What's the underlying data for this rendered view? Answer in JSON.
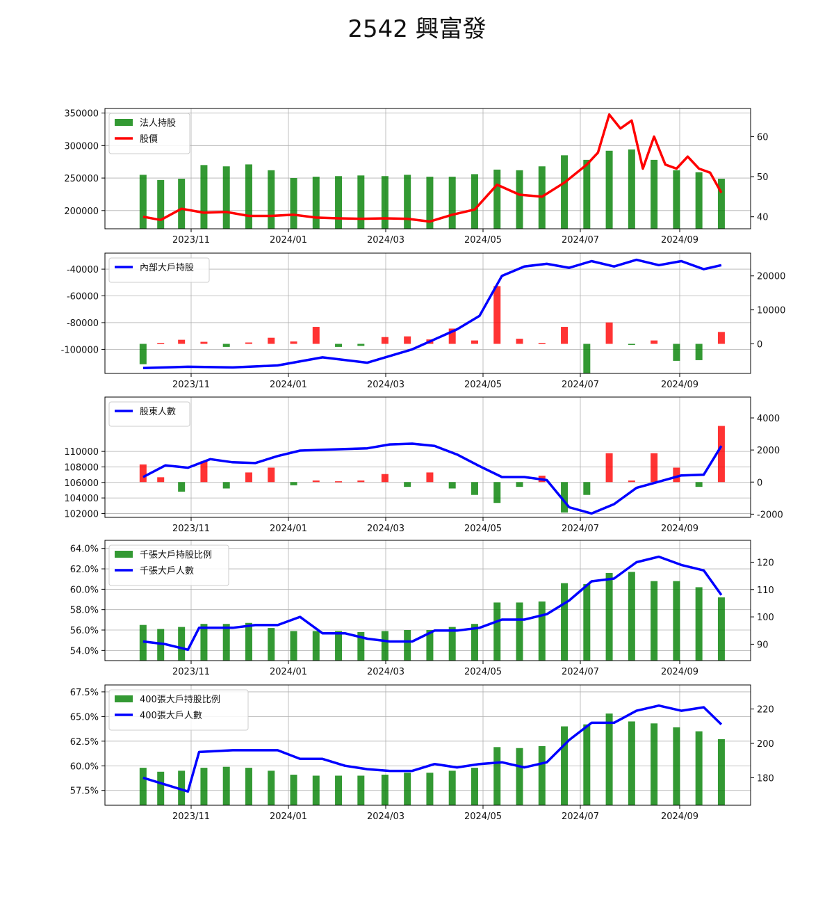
{
  "title": "2542 興富發",
  "colors": {
    "bar_green": "#008000",
    "price_red": "#ff0000",
    "line_blue": "#0000ff",
    "bar_red": "#ff0000"
  },
  "x_ticks": [
    "2023/11",
    "2024/01",
    "2024/03",
    "2024/05",
    "2024/07",
    "2024/09"
  ],
  "chart_data": [
    {
      "type": "bar+line",
      "legend": [
        "法人持股",
        "股價"
      ],
      "legend_position": "upper-left",
      "grid": true,
      "left_ticks": [
        "200000",
        "250000",
        "300000",
        "350000"
      ],
      "right_ticks": [
        "40",
        "50",
        "60"
      ],
      "left_ylim": [
        172000,
        357000
      ],
      "right_ylim": [
        37,
        67
      ],
      "series": [
        {
          "name": "法人持股",
          "axis": "left",
          "kind": "bar",
          "x": [
            "2023-10-02",
            "2023-10-13",
            "2023-10-26",
            "2023-11-09",
            "2023-11-23",
            "2023-12-07",
            "2023-12-21",
            "2024-01-04",
            "2024-01-18",
            "2024-02-01",
            "2024-02-15",
            "2024-03-01",
            "2024-03-15",
            "2024-03-29",
            "2024-04-12",
            "2024-04-26",
            "2024-05-10",
            "2024-05-24",
            "2024-06-07",
            "2024-06-21",
            "2024-07-05",
            "2024-07-19",
            "2024-08-02",
            "2024-08-16",
            "2024-08-30",
            "2024-09-13",
            "2024-09-27"
          ],
          "values": [
            255000,
            247000,
            249000,
            270000,
            268000,
            271000,
            262000,
            250000,
            252000,
            253000,
            254000,
            253000,
            255000,
            252000,
            252000,
            256000,
            263000,
            262000,
            268000,
            285000,
            278000,
            292000,
            294000,
            278000,
            262000,
            259000,
            249000
          ]
        },
        {
          "name": "股價",
          "axis": "right",
          "kind": "line",
          "x": [
            "2023-10-02",
            "2023-10-13",
            "2023-10-26",
            "2023-11-09",
            "2023-11-23",
            "2023-12-07",
            "2023-12-21",
            "2024-01-04",
            "2024-01-18",
            "2024-02-01",
            "2024-02-15",
            "2024-03-01",
            "2024-03-15",
            "2024-03-29",
            "2024-04-12",
            "2024-04-26",
            "2024-05-10",
            "2024-05-24",
            "2024-06-07",
            "2024-06-21",
            "2024-07-05",
            "2024-07-12",
            "2024-07-19",
            "2024-07-26",
            "2024-08-02",
            "2024-08-09",
            "2024-08-16",
            "2024-08-23",
            "2024-08-30",
            "2024-09-06",
            "2024-09-13",
            "2024-09-20",
            "2024-09-27"
          ],
          "values": [
            40,
            39.2,
            42,
            41,
            41.2,
            40.2,
            40.2,
            40.5,
            39.8,
            39.6,
            39.5,
            39.6,
            39.5,
            38.8,
            40.5,
            41.8,
            48,
            45.5,
            45,
            48.5,
            53,
            56,
            65.5,
            62,
            64,
            52,
            60,
            53,
            52,
            55,
            52,
            51,
            46
          ]
        }
      ]
    },
    {
      "type": "bar+line",
      "legend": [
        "內部大戶持股"
      ],
      "legend_position": "upper-left",
      "grid": true,
      "left_ticks": [
        "-100000",
        "-80000",
        "-60000",
        "-40000"
      ],
      "right_ticks": [
        "0",
        "10000",
        "20000"
      ],
      "left_ylim": [
        -118000,
        -28000
      ],
      "right_ylim": [
        -8700,
        26700
      ],
      "series": [
        {
          "name": "內部大戶持股",
          "axis": "left",
          "kind": "line",
          "x": [
            "2023-10-02",
            "2023-10-30",
            "2023-11-27",
            "2023-12-25",
            "2024-01-22",
            "2024-02-19",
            "2024-03-18",
            "2024-04-15",
            "2024-04-29",
            "2024-05-13",
            "2024-05-27",
            "2024-06-10",
            "2024-06-24",
            "2024-07-08",
            "2024-07-22",
            "2024-08-05",
            "2024-08-19",
            "2024-09-02",
            "2024-09-16",
            "2024-09-27"
          ],
          "values": [
            -114000,
            -113000,
            -113500,
            -112000,
            -106000,
            -110000,
            -100000,
            -85000,
            -75000,
            -45000,
            -38000,
            -36000,
            -39000,
            -34000,
            -38000,
            -33000,
            -37000,
            -34000,
            -40000,
            -37000
          ]
        },
        {
          "name": "變化",
          "axis": "right",
          "kind": "bar",
          "x": [
            "2023-10-02",
            "2023-10-13",
            "2023-10-26",
            "2023-11-09",
            "2023-11-23",
            "2023-12-07",
            "2023-12-21",
            "2024-01-04",
            "2024-01-18",
            "2024-02-01",
            "2024-02-15",
            "2024-03-01",
            "2024-03-15",
            "2024-03-29",
            "2024-04-12",
            "2024-04-26",
            "2024-05-10",
            "2024-05-24",
            "2024-06-07",
            "2024-06-21",
            "2024-07-05",
            "2024-07-19",
            "2024-08-02",
            "2024-08-16",
            "2024-08-30",
            "2024-09-13",
            "2024-09-27"
          ],
          "values": [
            -6000,
            300,
            1200,
            600,
            -900,
            400,
            1800,
            700,
            5000,
            -900,
            -600,
            2000,
            2200,
            1300,
            4500,
            1000,
            17000,
            1500,
            300,
            5000,
            -8600,
            6300,
            -300,
            1000,
            -5000,
            -4800,
            3500
          ]
        }
      ]
    },
    {
      "type": "bar+line",
      "legend": [
        "股東人數"
      ],
      "legend_position": "upper-left",
      "grid": true,
      "left_ticks": [
        "102000",
        "104000",
        "106000",
        "108000",
        "110000"
      ],
      "right_ticks": [
        "-2000",
        "0",
        "2000",
        "4000"
      ],
      "left_ylim": [
        101500,
        117000
      ],
      "right_ylim": [
        -2200,
        5300
      ],
      "series": [
        {
          "name": "股東人數",
          "axis": "left",
          "kind": "line",
          "x": [
            "2023-10-02",
            "2023-10-16",
            "2023-10-30",
            "2023-11-13",
            "2023-11-27",
            "2023-12-11",
            "2023-12-25",
            "2024-01-08",
            "2024-01-22",
            "2024-02-05",
            "2024-02-19",
            "2024-03-04",
            "2024-03-18",
            "2024-04-01",
            "2024-04-15",
            "2024-04-29",
            "2024-05-13",
            "2024-05-27",
            "2024-06-10",
            "2024-06-24",
            "2024-07-08",
            "2024-07-22",
            "2024-08-05",
            "2024-08-19",
            "2024-09-02",
            "2024-09-16",
            "2024-09-27"
          ],
          "values": [
            106700,
            108200,
            107900,
            109000,
            108600,
            108500,
            109400,
            110100,
            110200,
            110300,
            110400,
            110900,
            111000,
            110700,
            109600,
            108100,
            106700,
            106700,
            106300,
            102800,
            102000,
            103200,
            105300,
            106100,
            106900,
            107000,
            110700
          ]
        },
        {
          "name": "變化",
          "axis": "right",
          "kind": "bar",
          "x": [
            "2023-10-02",
            "2023-10-13",
            "2023-10-26",
            "2023-11-09",
            "2023-11-23",
            "2023-12-07",
            "2023-12-21",
            "2024-01-04",
            "2024-01-18",
            "2024-02-01",
            "2024-02-15",
            "2024-03-01",
            "2024-03-15",
            "2024-03-29",
            "2024-04-12",
            "2024-04-26",
            "2024-05-10",
            "2024-05-24",
            "2024-06-07",
            "2024-06-21",
            "2024-07-05",
            "2024-07-19",
            "2024-08-02",
            "2024-08-16",
            "2024-08-30",
            "2024-09-13",
            "2024-09-27"
          ],
          "values": [
            1100,
            300,
            -600,
            1300,
            -400,
            600,
            900,
            -200,
            100,
            50,
            100,
            500,
            -300,
            600,
            -400,
            -800,
            -1300,
            -300,
            400,
            -1900,
            -800,
            1800,
            100,
            1800,
            900,
            -300,
            3500
          ]
        }
      ]
    },
    {
      "type": "bar+line",
      "legend": [
        "千張大戶持股比例",
        "千張大戶人數"
      ],
      "legend_position": "upper-left",
      "grid": true,
      "left_ticks": [
        "54.0%",
        "56.0%",
        "58.0%",
        "60.0%",
        "62.0%",
        "64.0%"
      ],
      "right_ticks": [
        "90",
        "100",
        "110",
        "120"
      ],
      "left_ylim": [
        53,
        64.8
      ],
      "right_ylim": [
        84,
        128
      ],
      "series": [
        {
          "name": "千張大戶持股比例",
          "axis": "left",
          "kind": "bar",
          "x": [
            "2023-10-02",
            "2023-10-13",
            "2023-10-26",
            "2023-11-09",
            "2023-11-23",
            "2023-12-07",
            "2023-12-21",
            "2024-01-04",
            "2024-01-18",
            "2024-02-01",
            "2024-02-15",
            "2024-03-01",
            "2024-03-15",
            "2024-03-29",
            "2024-04-12",
            "2024-04-26",
            "2024-05-10",
            "2024-05-24",
            "2024-06-07",
            "2024-06-21",
            "2024-07-05",
            "2024-07-19",
            "2024-08-02",
            "2024-08-16",
            "2024-08-30",
            "2024-09-13",
            "2024-09-27"
          ],
          "values": [
            56.5,
            56.1,
            56.3,
            56.6,
            56.6,
            56.7,
            56.2,
            55.9,
            55.9,
            55.9,
            55.8,
            55.9,
            56.0,
            56.0,
            56.3,
            56.6,
            58.7,
            58.7,
            58.8,
            60.6,
            60.5,
            61.6,
            61.7,
            60.8,
            60.8,
            60.2,
            59.2
          ]
        },
        {
          "name": "千張大戶人數",
          "axis": "right",
          "kind": "line",
          "x": [
            "2023-10-02",
            "2023-10-16",
            "2023-10-30",
            "2023-11-06",
            "2023-11-27",
            "2023-12-11",
            "2023-12-25",
            "2024-01-08",
            "2024-01-22",
            "2024-02-05",
            "2024-02-19",
            "2024-03-04",
            "2024-03-18",
            "2024-04-01",
            "2024-04-15",
            "2024-04-29",
            "2024-05-13",
            "2024-05-27",
            "2024-06-10",
            "2024-06-24",
            "2024-07-08",
            "2024-07-22",
            "2024-08-05",
            "2024-08-19",
            "2024-09-02",
            "2024-09-16",
            "2024-09-27"
          ],
          "values": [
            91,
            90,
            88,
            96,
            96,
            97,
            97,
            100,
            94,
            94,
            92,
            91,
            91,
            95,
            95,
            96,
            99,
            99,
            101,
            106,
            113,
            114,
            120,
            122,
            119,
            117,
            108
          ]
        }
      ]
    },
    {
      "type": "bar+line",
      "legend": [
        "400張大戶持股比例",
        "400張大戶人數"
      ],
      "legend_position": "upper-left",
      "grid": true,
      "left_ticks": [
        "57.5%",
        "60.0%",
        "62.5%",
        "65.0%",
        "67.5%"
      ],
      "right_ticks": [
        "180",
        "200",
        "220"
      ],
      "left_ylim": [
        56,
        68.2
      ],
      "right_ylim": [
        164,
        234
      ],
      "series": [
        {
          "name": "400張大戶持股比例",
          "axis": "left",
          "kind": "bar",
          "x": [
            "2023-10-02",
            "2023-10-13",
            "2023-10-26",
            "2023-11-09",
            "2023-11-23",
            "2023-12-07",
            "2023-12-21",
            "2024-01-04",
            "2024-01-18",
            "2024-02-01",
            "2024-02-15",
            "2024-03-01",
            "2024-03-15",
            "2024-03-29",
            "2024-04-12",
            "2024-04-26",
            "2024-05-10",
            "2024-05-24",
            "2024-06-07",
            "2024-06-21",
            "2024-07-05",
            "2024-07-19",
            "2024-08-02",
            "2024-08-16",
            "2024-08-30",
            "2024-09-13",
            "2024-09-27"
          ],
          "values": [
            59.8,
            59.4,
            59.5,
            59.8,
            59.9,
            59.8,
            59.5,
            59.1,
            59.0,
            59.0,
            59.0,
            59.1,
            59.3,
            59.3,
            59.5,
            59.8,
            61.9,
            61.8,
            62.0,
            64.0,
            64.2,
            65.3,
            64.5,
            64.3,
            63.9,
            63.5,
            62.7
          ]
        },
        {
          "name": "400張大戶人數",
          "axis": "right",
          "kind": "line",
          "x": [
            "2023-10-02",
            "2023-10-16",
            "2023-10-30",
            "2023-11-06",
            "2023-11-27",
            "2023-12-11",
            "2023-12-25",
            "2024-01-08",
            "2024-01-22",
            "2024-02-05",
            "2024-02-19",
            "2024-03-04",
            "2024-03-18",
            "2024-04-01",
            "2024-04-15",
            "2024-04-29",
            "2024-05-13",
            "2024-05-27",
            "2024-06-10",
            "2024-06-24",
            "2024-07-08",
            "2024-07-22",
            "2024-08-05",
            "2024-08-19",
            "2024-09-02",
            "2024-09-16",
            "2024-09-27"
          ],
          "values": [
            180,
            176,
            172,
            195,
            196,
            196,
            196,
            191,
            191,
            187,
            185,
            184,
            184,
            188,
            186,
            188,
            189,
            186,
            189,
            202,
            212,
            212,
            219,
            222,
            219,
            221,
            211
          ]
        }
      ]
    }
  ]
}
